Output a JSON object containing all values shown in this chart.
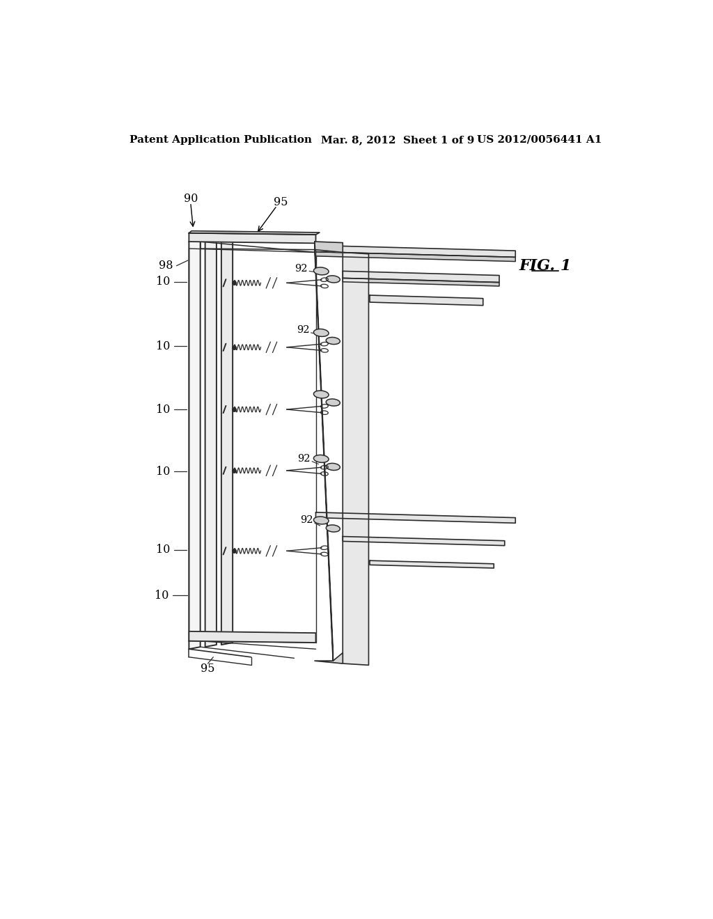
{
  "background_color": "#ffffff",
  "header_left": "Patent Application Publication",
  "header_center": "Mar. 8, 2012  Sheet 1 of 9",
  "header_right": "US 2012/0056441 A1",
  "header_fontsize": 11,
  "line_color": "#2a2a2a",
  "line_width": 1.3
}
